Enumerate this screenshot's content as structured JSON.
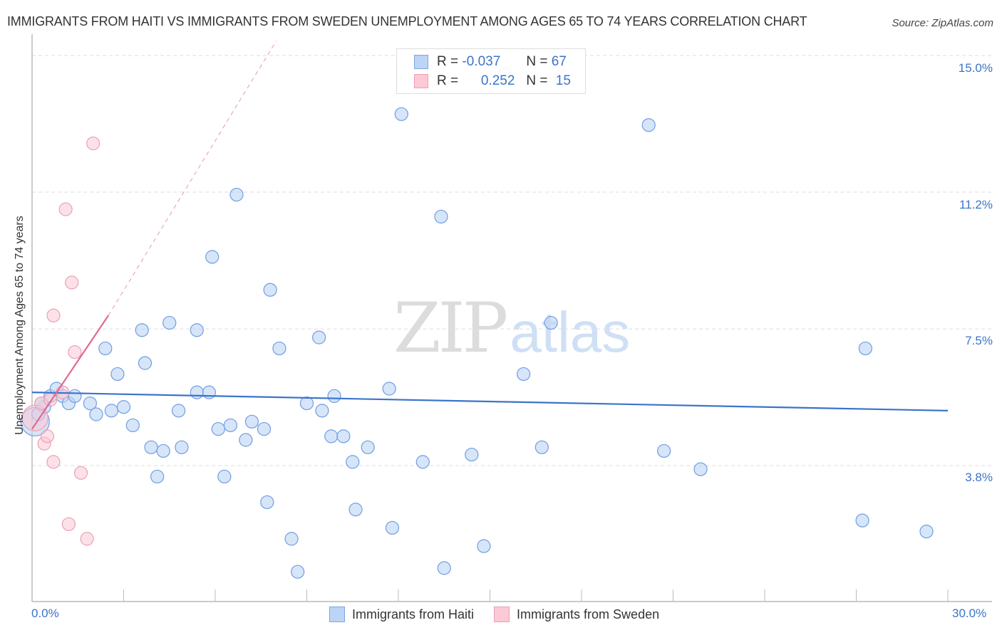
{
  "header": {
    "title": "IMMIGRANTS FROM HAITI VS IMMIGRANTS FROM SWEDEN UNEMPLOYMENT AMONG AGES 65 TO 74 YEARS CORRELATION CHART",
    "source": "Source: ZipAtlas.com"
  },
  "legend": {
    "rows": [
      {
        "r_label": "R =",
        "r_value": "-0.037",
        "n_label": "N =",
        "n_value": "67"
      },
      {
        "r_label": "R =",
        "r_value": "0.252",
        "n_label": "N =",
        "n_value": "15"
      }
    ],
    "bottom": [
      "Immigrants from Haiti",
      "Immigrants from Sweden"
    ]
  },
  "axes": {
    "ylabel": "Unemployment Among Ages 65 to 74 years",
    "yticks": [
      "15.0%",
      "11.2%",
      "7.5%",
      "3.8%"
    ],
    "xticks": [
      "0.0%",
      "30.0%"
    ]
  },
  "watermark": {
    "zip": "ZIP",
    "atlas": "atlas"
  },
  "colors": {
    "haiti": "#3b74c9",
    "haiti_fill": "#bcd4f5",
    "sweden": "#e06a92",
    "sweden_fill": "#fcc9d6",
    "tick_text": "#3b74c9"
  },
  "chart_data": {
    "type": "scatter",
    "title": "IMMIGRANTS FROM HAITI VS IMMIGRANTS FROM SWEDEN UNEMPLOYMENT AMONG AGES 65 TO 74 YEARS CORRELATION CHART",
    "xlabel": "",
    "ylabel": "Unemployment Among Ages 65 to 74 years",
    "xlim": [
      0,
      30
    ],
    "ylim": [
      0.5,
      15.4
    ],
    "x_tick_labels": [
      "0.0%",
      "30.0%"
    ],
    "y_tick_labels": [
      "3.8%",
      "7.5%",
      "11.2%",
      "15.0%"
    ],
    "grid": "horizontal dashed",
    "legend_position": "top-center inset + bottom",
    "series": [
      {
        "name": "Immigrants from Haiti",
        "R": -0.037,
        "N": 67,
        "trend": {
          "x": [
            0,
            30
          ],
          "y": [
            5.8,
            5.3
          ]
        },
        "points": [
          [
            0.1,
            5.0
          ],
          [
            0.4,
            5.4
          ],
          [
            0.6,
            5.7
          ],
          [
            0.8,
            5.9
          ],
          [
            1.0,
            5.7
          ],
          [
            1.2,
            5.5
          ],
          [
            1.4,
            5.7
          ],
          [
            1.9,
            5.5
          ],
          [
            2.1,
            5.2
          ],
          [
            2.4,
            7.0
          ],
          [
            2.6,
            5.3
          ],
          [
            2.8,
            6.3
          ],
          [
            3.0,
            5.4
          ],
          [
            3.3,
            4.9
          ],
          [
            3.6,
            7.5
          ],
          [
            3.7,
            6.6
          ],
          [
            3.9,
            4.3
          ],
          [
            4.1,
            3.5
          ],
          [
            4.3,
            4.2
          ],
          [
            4.5,
            7.7
          ],
          [
            4.8,
            5.3
          ],
          [
            4.9,
            4.3
          ],
          [
            5.4,
            7.5
          ],
          [
            5.4,
            5.8
          ],
          [
            5.8,
            5.8
          ],
          [
            5.9,
            9.5
          ],
          [
            6.1,
            4.8
          ],
          [
            6.3,
            3.5
          ],
          [
            6.5,
            4.9
          ],
          [
            6.7,
            11.2
          ],
          [
            7.0,
            4.5
          ],
          [
            7.2,
            5.0
          ],
          [
            7.6,
            4.8
          ],
          [
            7.7,
            2.8
          ],
          [
            7.8,
            8.6
          ],
          [
            8.1,
            7.0
          ],
          [
            8.5,
            1.8
          ],
          [
            8.7,
            0.9
          ],
          [
            9.0,
            5.5
          ],
          [
            9.4,
            7.3
          ],
          [
            9.5,
            5.3
          ],
          [
            9.8,
            4.6
          ],
          [
            9.9,
            5.7
          ],
          [
            10.2,
            4.6
          ],
          [
            10.5,
            3.9
          ],
          [
            10.6,
            2.6
          ],
          [
            11.0,
            4.3
          ],
          [
            11.7,
            5.9
          ],
          [
            11.8,
            2.1
          ],
          [
            12.1,
            13.4
          ],
          [
            12.8,
            3.9
          ],
          [
            13.4,
            10.6
          ],
          [
            13.5,
            1.0
          ],
          [
            14.4,
            4.1
          ],
          [
            14.8,
            1.6
          ],
          [
            15.5,
            14.5
          ],
          [
            16.1,
            6.3
          ],
          [
            16.7,
            4.3
          ],
          [
            17.0,
            7.7
          ],
          [
            20.2,
            13.1
          ],
          [
            20.7,
            4.2
          ],
          [
            21.9,
            3.7
          ],
          [
            27.3,
            7.0
          ],
          [
            27.2,
            2.3
          ],
          [
            29.3,
            2.0
          ],
          [
            0.3,
            5.5
          ],
          [
            0.2,
            5.2
          ]
        ]
      },
      {
        "name": "Immigrants from Sweden",
        "R": 0.252,
        "N": 15,
        "trend": {
          "x": [
            0,
            2.5
          ],
          "y": [
            4.8,
            7.9
          ],
          "extended_dashed_to": [
            8.0,
            15.4
          ]
        },
        "points": [
          [
            0.1,
            5.1
          ],
          [
            0.3,
            5.5
          ],
          [
            0.4,
            4.4
          ],
          [
            0.5,
            4.6
          ],
          [
            0.6,
            5.6
          ],
          [
            0.7,
            3.9
          ],
          [
            0.7,
            7.9
          ],
          [
            1.0,
            5.8
          ],
          [
            1.1,
            10.8
          ],
          [
            1.2,
            2.2
          ],
          [
            1.3,
            8.8
          ],
          [
            1.4,
            6.9
          ],
          [
            1.6,
            3.6
          ],
          [
            1.8,
            1.8
          ],
          [
            2.0,
            12.6
          ]
        ]
      }
    ]
  }
}
